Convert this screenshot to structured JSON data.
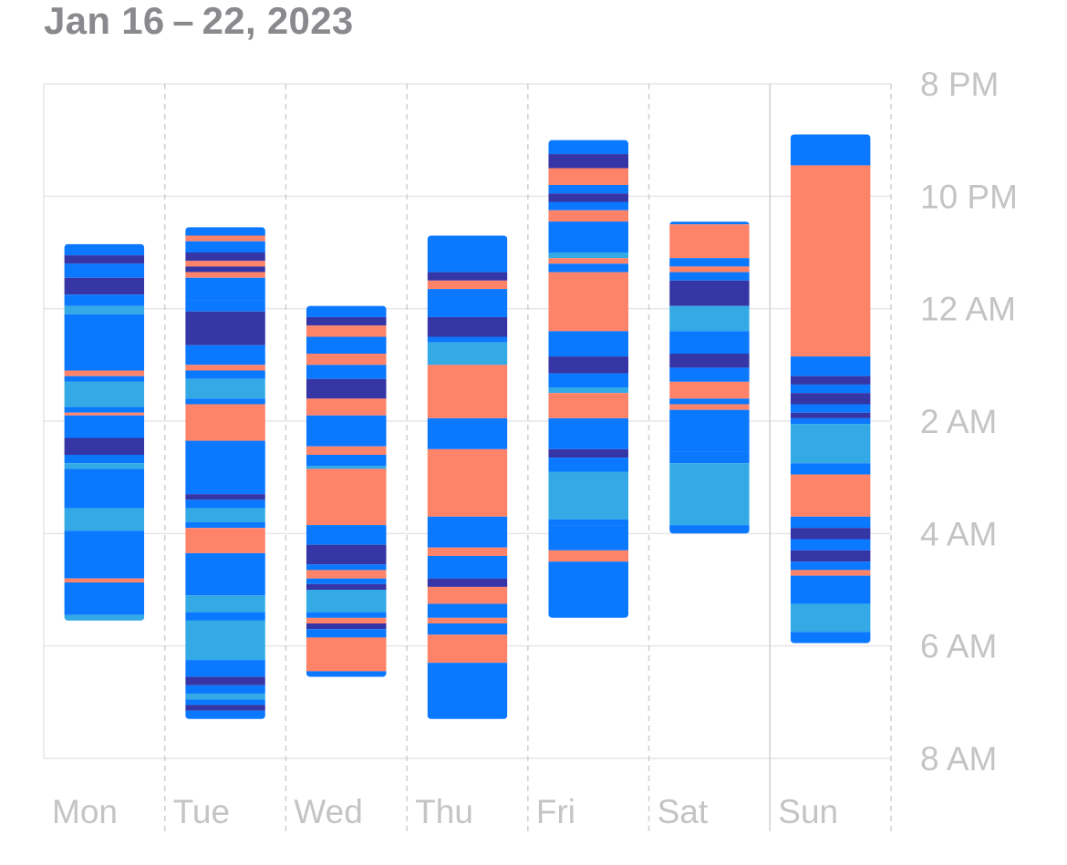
{
  "header": {
    "title": "Jan 16 – 22, 2023"
  },
  "colors": {
    "awake": "#FF8369",
    "rem": "#33A9E6",
    "core": "#0A78FF",
    "deep": "#3535A5",
    "grid": "#e6e6e8",
    "label": "#c4c4c7"
  },
  "chart_data": {
    "type": "bar",
    "title": "Jan 16 – 22, 2023",
    "categories": [
      "Mon",
      "Tue",
      "Wed",
      "Thu",
      "Fri",
      "Sat",
      "Sun"
    ],
    "y_ticks": [
      "8 PM",
      "10 PM",
      "12 AM",
      "2 AM",
      "4 AM",
      "6 AM",
      "8 AM"
    ],
    "y_range_hours_after_8pm": [
      0,
      12
    ],
    "y_direction": "down",
    "grid": true,
    "segment_units": "hours after 8 PM",
    "days": [
      {
        "day": "Mon",
        "segments": [
          [
            2.85,
            3.05,
            "core"
          ],
          [
            3.05,
            3.2,
            "deep"
          ],
          [
            3.2,
            3.45,
            "core"
          ],
          [
            3.45,
            3.75,
            "deep"
          ],
          [
            3.75,
            3.95,
            "core"
          ],
          [
            3.95,
            4.1,
            "rem"
          ],
          [
            4.1,
            5.1,
            "core"
          ],
          [
            5.1,
            5.2,
            "awake"
          ],
          [
            5.2,
            5.3,
            "core"
          ],
          [
            5.3,
            5.75,
            "rem"
          ],
          [
            5.75,
            5.85,
            "core"
          ],
          [
            5.85,
            5.9,
            "awake"
          ],
          [
            5.9,
            6.3,
            "core"
          ],
          [
            6.3,
            6.6,
            "deep"
          ],
          [
            6.6,
            6.75,
            "core"
          ],
          [
            6.75,
            6.85,
            "rem"
          ],
          [
            6.85,
            7.55,
            "core"
          ],
          [
            7.55,
            7.95,
            "rem"
          ],
          [
            7.95,
            8.8,
            "core"
          ],
          [
            8.8,
            8.87,
            "awake"
          ],
          [
            8.87,
            9.45,
            "core"
          ],
          [
            9.45,
            9.55,
            "rem"
          ]
        ]
      },
      {
        "day": "Tue",
        "segments": [
          [
            2.55,
            2.7,
            "core"
          ],
          [
            2.7,
            2.8,
            "awake"
          ],
          [
            2.8,
            3.0,
            "core"
          ],
          [
            3.0,
            3.15,
            "deep"
          ],
          [
            3.15,
            3.25,
            "awake"
          ],
          [
            3.25,
            3.35,
            "deep"
          ],
          [
            3.35,
            3.45,
            "awake"
          ],
          [
            3.45,
            3.85,
            "core"
          ],
          [
            3.85,
            4.05,
            "core"
          ],
          [
            4.05,
            4.65,
            "deep"
          ],
          [
            4.65,
            5.0,
            "core"
          ],
          [
            5.0,
            5.1,
            "awake"
          ],
          [
            5.1,
            5.25,
            "core"
          ],
          [
            5.25,
            5.6,
            "rem"
          ],
          [
            5.6,
            5.7,
            "core"
          ],
          [
            5.7,
            6.35,
            "awake"
          ],
          [
            6.35,
            7.3,
            "core"
          ],
          [
            7.3,
            7.4,
            "deep"
          ],
          [
            7.4,
            7.55,
            "core"
          ],
          [
            7.55,
            7.8,
            "rem"
          ],
          [
            7.8,
            7.9,
            "core"
          ],
          [
            7.9,
            8.35,
            "awake"
          ],
          [
            8.35,
            9.1,
            "core"
          ],
          [
            9.1,
            9.4,
            "rem"
          ],
          [
            9.4,
            9.55,
            "core"
          ],
          [
            9.55,
            10.25,
            "rem"
          ],
          [
            10.25,
            10.55,
            "core"
          ],
          [
            10.55,
            10.7,
            "deep"
          ],
          [
            10.7,
            10.85,
            "core"
          ],
          [
            10.85,
            10.95,
            "rem"
          ],
          [
            10.95,
            11.05,
            "core"
          ],
          [
            11.05,
            11.15,
            "deep"
          ],
          [
            11.15,
            11.3,
            "core"
          ]
        ]
      },
      {
        "day": "Wed",
        "segments": [
          [
            3.95,
            4.15,
            "core"
          ],
          [
            4.15,
            4.3,
            "deep"
          ],
          [
            4.3,
            4.5,
            "awake"
          ],
          [
            4.5,
            4.8,
            "core"
          ],
          [
            4.8,
            5.0,
            "awake"
          ],
          [
            5.0,
            5.25,
            "core"
          ],
          [
            5.25,
            5.6,
            "deep"
          ],
          [
            5.6,
            5.9,
            "awake"
          ],
          [
            5.9,
            6.45,
            "core"
          ],
          [
            6.45,
            6.6,
            "awake"
          ],
          [
            6.6,
            6.8,
            "core"
          ],
          [
            6.8,
            6.85,
            "rem"
          ],
          [
            6.85,
            7.85,
            "awake"
          ],
          [
            7.85,
            8.2,
            "core"
          ],
          [
            8.2,
            8.55,
            "deep"
          ],
          [
            8.55,
            8.65,
            "core"
          ],
          [
            8.65,
            8.8,
            "awake"
          ],
          [
            8.8,
            8.9,
            "core"
          ],
          [
            8.9,
            9.0,
            "deep"
          ],
          [
            9.0,
            9.4,
            "rem"
          ],
          [
            9.4,
            9.5,
            "core"
          ],
          [
            9.5,
            9.6,
            "awake"
          ],
          [
            9.6,
            9.7,
            "deep"
          ],
          [
            9.7,
            9.85,
            "core"
          ],
          [
            9.85,
            10.45,
            "awake"
          ],
          [
            10.45,
            10.55,
            "core"
          ]
        ]
      },
      {
        "day": "Thu",
        "segments": [
          [
            2.7,
            3.35,
            "core"
          ],
          [
            3.35,
            3.5,
            "deep"
          ],
          [
            3.5,
            3.65,
            "awake"
          ],
          [
            3.65,
            4.15,
            "core"
          ],
          [
            4.15,
            4.5,
            "deep"
          ],
          [
            4.5,
            4.6,
            "core"
          ],
          [
            4.6,
            5.0,
            "rem"
          ],
          [
            5.0,
            5.95,
            "awake"
          ],
          [
            5.95,
            6.5,
            "core"
          ],
          [
            6.5,
            7.7,
            "awake"
          ],
          [
            7.7,
            8.25,
            "core"
          ],
          [
            8.25,
            8.4,
            "awake"
          ],
          [
            8.4,
            8.8,
            "core"
          ],
          [
            8.8,
            8.95,
            "deep"
          ],
          [
            8.95,
            9.25,
            "awake"
          ],
          [
            9.25,
            9.5,
            "core"
          ],
          [
            9.5,
            9.6,
            "awake"
          ],
          [
            9.6,
            9.8,
            "core"
          ],
          [
            9.8,
            10.3,
            "awake"
          ],
          [
            10.3,
            10.5,
            "core"
          ],
          [
            10.5,
            11.3,
            "core"
          ]
        ]
      },
      {
        "day": "Fri",
        "segments": [
          [
            1.0,
            1.25,
            "core"
          ],
          [
            1.25,
            1.5,
            "deep"
          ],
          [
            1.5,
            1.8,
            "awake"
          ],
          [
            1.8,
            1.95,
            "core"
          ],
          [
            1.95,
            2.1,
            "deep"
          ],
          [
            2.1,
            2.25,
            "core"
          ],
          [
            2.25,
            2.45,
            "awake"
          ],
          [
            2.45,
            3.0,
            "core"
          ],
          [
            3.0,
            3.1,
            "rem"
          ],
          [
            3.1,
            3.2,
            "awake"
          ],
          [
            3.2,
            3.35,
            "core"
          ],
          [
            3.35,
            4.4,
            "awake"
          ],
          [
            4.4,
            4.85,
            "core"
          ],
          [
            4.85,
            5.15,
            "deep"
          ],
          [
            5.15,
            5.4,
            "core"
          ],
          [
            5.4,
            5.5,
            "rem"
          ],
          [
            5.5,
            5.95,
            "awake"
          ],
          [
            5.95,
            6.5,
            "core"
          ],
          [
            6.5,
            6.65,
            "deep"
          ],
          [
            6.65,
            6.9,
            "core"
          ],
          [
            6.9,
            7.75,
            "rem"
          ],
          [
            7.75,
            7.85,
            "core"
          ],
          [
            7.85,
            8.3,
            "core"
          ],
          [
            8.3,
            8.5,
            "awake"
          ],
          [
            8.5,
            9.0,
            "core"
          ],
          [
            9.0,
            9.5,
            "core"
          ]
        ]
      },
      {
        "day": "Sat",
        "segments": [
          [
            2.45,
            2.5,
            "core"
          ],
          [
            2.5,
            3.1,
            "awake"
          ],
          [
            3.1,
            3.25,
            "core"
          ],
          [
            3.25,
            3.35,
            "awake"
          ],
          [
            3.35,
            3.5,
            "core"
          ],
          [
            3.5,
            3.95,
            "deep"
          ],
          [
            3.95,
            4.4,
            "rem"
          ],
          [
            4.4,
            4.8,
            "core"
          ],
          [
            4.8,
            5.05,
            "deep"
          ],
          [
            5.05,
            5.3,
            "core"
          ],
          [
            5.3,
            5.6,
            "awake"
          ],
          [
            5.6,
            5.7,
            "core"
          ],
          [
            5.7,
            5.8,
            "awake"
          ],
          [
            5.8,
            6.55,
            "core"
          ],
          [
            6.55,
            6.75,
            "core"
          ],
          [
            6.75,
            7.85,
            "rem"
          ],
          [
            7.85,
            8.0,
            "core"
          ]
        ]
      },
      {
        "day": "Sun",
        "segments": [
          [
            0.9,
            1.45,
            "core"
          ],
          [
            1.45,
            4.85,
            "awake"
          ],
          [
            4.85,
            5.2,
            "core"
          ],
          [
            5.2,
            5.35,
            "deep"
          ],
          [
            5.35,
            5.5,
            "core"
          ],
          [
            5.5,
            5.7,
            "deep"
          ],
          [
            5.7,
            5.85,
            "core"
          ],
          [
            5.85,
            5.95,
            "deep"
          ],
          [
            5.95,
            6.05,
            "core"
          ],
          [
            6.05,
            6.75,
            "rem"
          ],
          [
            6.75,
            6.95,
            "core"
          ],
          [
            6.95,
            7.7,
            "awake"
          ],
          [
            7.7,
            7.9,
            "core"
          ],
          [
            7.9,
            8.1,
            "deep"
          ],
          [
            8.1,
            8.3,
            "core"
          ],
          [
            8.3,
            8.5,
            "deep"
          ],
          [
            8.5,
            8.65,
            "core"
          ],
          [
            8.65,
            8.75,
            "awake"
          ],
          [
            8.75,
            9.25,
            "core"
          ],
          [
            9.25,
            9.75,
            "rem"
          ],
          [
            9.75,
            9.95,
            "core"
          ]
        ]
      }
    ]
  }
}
